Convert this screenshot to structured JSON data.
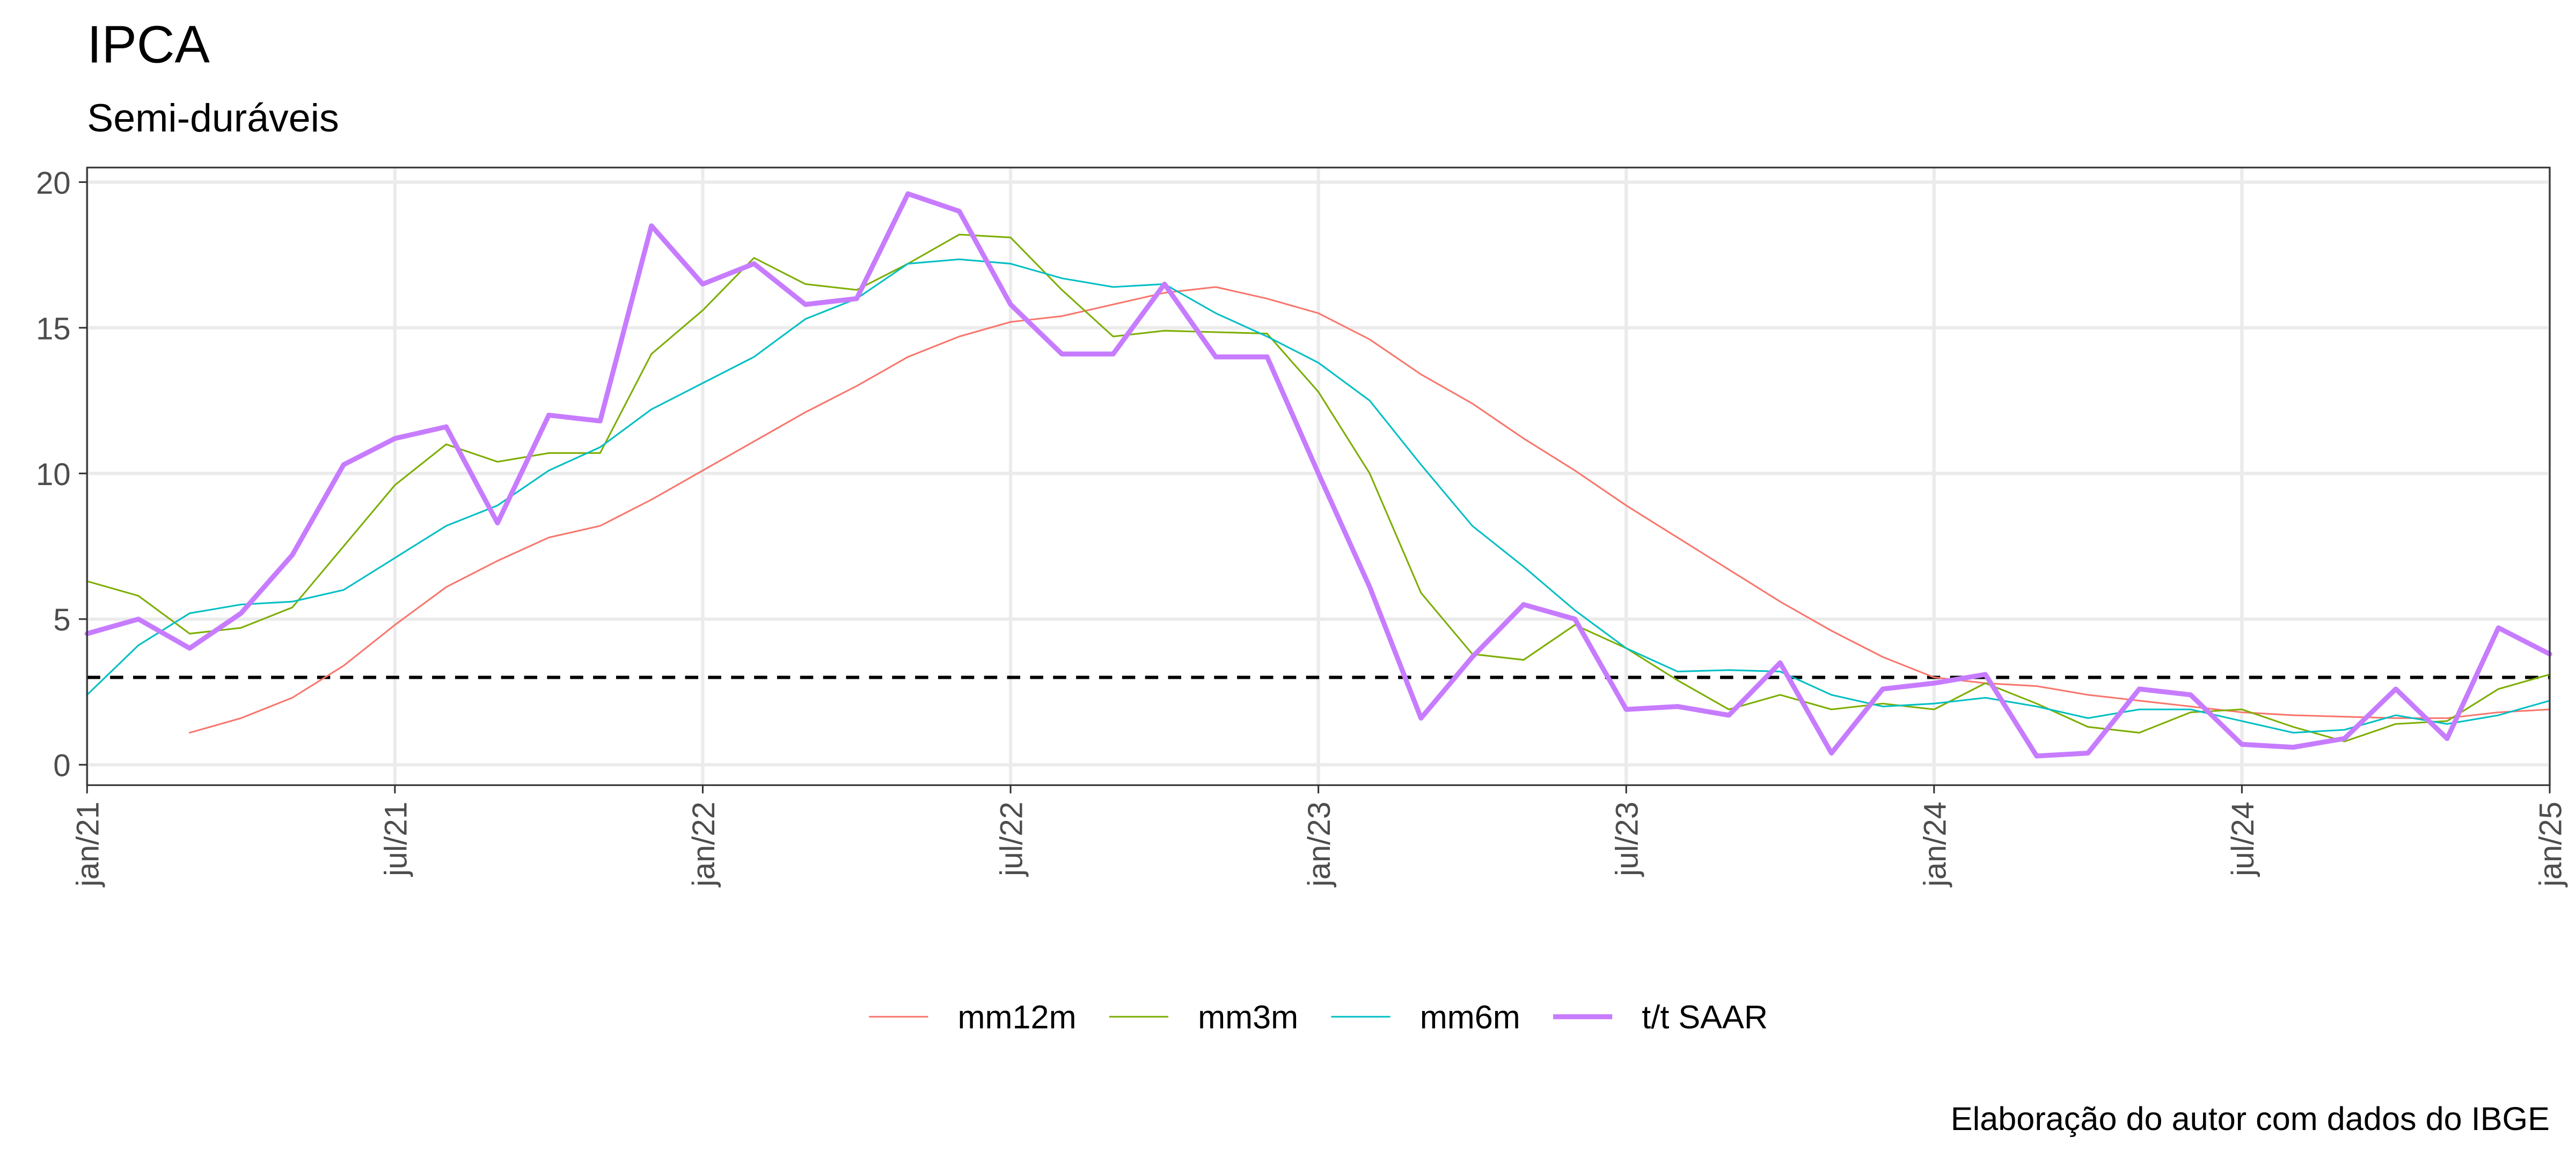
{
  "chart_data": {
    "type": "line",
    "title": "IPCA",
    "subtitle": "Semi-duráveis",
    "caption": "Elaboração do autor com dados do IBGE",
    "categories": [
      "jan/21",
      null,
      null,
      null,
      null,
      null,
      "jul/21",
      null,
      null,
      null,
      null,
      null,
      "jan/22",
      null,
      null,
      null,
      null,
      null,
      "jul/22",
      null,
      null,
      null,
      null,
      null,
      "jan/23",
      null,
      null,
      null,
      null,
      null,
      "jul/23",
      null,
      null,
      null,
      null,
      null,
      "jan/24",
      null,
      null,
      null,
      null,
      null,
      "jul/24",
      null,
      null,
      null,
      null,
      null,
      "jan/25"
    ],
    "series": [
      {
        "name": "mm12m",
        "color": "#F8766D",
        "width": 1,
        "values": [
          null,
          null,
          1.1,
          1.6,
          2.3,
          3.4,
          4.8,
          6.1,
          7.0,
          7.8,
          8.2,
          9.1,
          10.1,
          11.1,
          12.1,
          13.0,
          14.0,
          14.7,
          15.2,
          15.4,
          15.8,
          16.2,
          16.4,
          16.0,
          15.5,
          14.6,
          13.4,
          12.4,
          11.2,
          10.1,
          8.9,
          7.8,
          6.7,
          5.6,
          4.6,
          3.7,
          3.0,
          2.8,
          2.7,
          2.4,
          2.2,
          2.0,
          1.8,
          1.7,
          1.65,
          1.6,
          1.6,
          1.8,
          1.9
        ]
      },
      {
        "name": "mm3m",
        "color": "#7CAE00",
        "width": 1,
        "values": [
          6.3,
          5.8,
          4.5,
          4.7,
          5.4,
          7.5,
          9.6,
          11.0,
          10.4,
          10.7,
          10.7,
          14.1,
          15.6,
          17.4,
          16.5,
          16.3,
          17.2,
          18.2,
          18.1,
          16.3,
          14.7,
          14.9,
          14.85,
          14.8,
          12.8,
          10.0,
          5.9,
          3.8,
          3.6,
          4.8,
          4.0,
          2.9,
          1.9,
          2.4,
          1.9,
          2.1,
          1.9,
          2.8,
          2.1,
          1.3,
          1.1,
          1.8,
          1.9,
          1.3,
          0.8,
          1.4,
          1.5,
          2.6,
          3.1
        ]
      },
      {
        "name": "mm6m",
        "color": "#00BFC4",
        "width": 1,
        "values": [
          2.4,
          4.1,
          5.2,
          5.5,
          5.6,
          6.0,
          7.1,
          8.2,
          8.9,
          10.1,
          10.9,
          12.2,
          13.1,
          14.0,
          15.3,
          16.0,
          17.2,
          17.35,
          17.2,
          16.7,
          16.4,
          16.5,
          15.5,
          14.7,
          13.8,
          12.5,
          10.3,
          8.2,
          6.8,
          5.3,
          4.0,
          3.2,
          3.25,
          3.2,
          2.4,
          2.0,
          2.1,
          2.3,
          2.0,
          1.6,
          1.9,
          1.9,
          1.5,
          1.1,
          1.2,
          1.7,
          1.4,
          1.7,
          2.2
        ]
      },
      {
        "name": "t/t SAAR",
        "color": "#C77CFF",
        "width": 3,
        "values": [
          4.5,
          5.0,
          4.0,
          5.2,
          7.2,
          10.3,
          11.2,
          11.6,
          8.3,
          12.0,
          11.8,
          18.5,
          16.5,
          17.2,
          15.8,
          16.0,
          19.6,
          19.0,
          15.8,
          14.1,
          14.1,
          16.5,
          14.0,
          14.0,
          10.0,
          6.1,
          1.6,
          3.7,
          5.5,
          5.0,
          1.9,
          2.0,
          1.7,
          3.5,
          0.4,
          2.6,
          2.8,
          3.1,
          0.3,
          0.4,
          2.6,
          2.4,
          0.7,
          0.6,
          0.9,
          2.6,
          0.9,
          4.7,
          3.8
        ]
      }
    ],
    "reference_line": 3,
    "ylim": [
      -0.7,
      20.5
    ],
    "yticks": [
      0,
      5,
      10,
      15,
      20
    ],
    "grid": true,
    "legend": "bottom"
  }
}
